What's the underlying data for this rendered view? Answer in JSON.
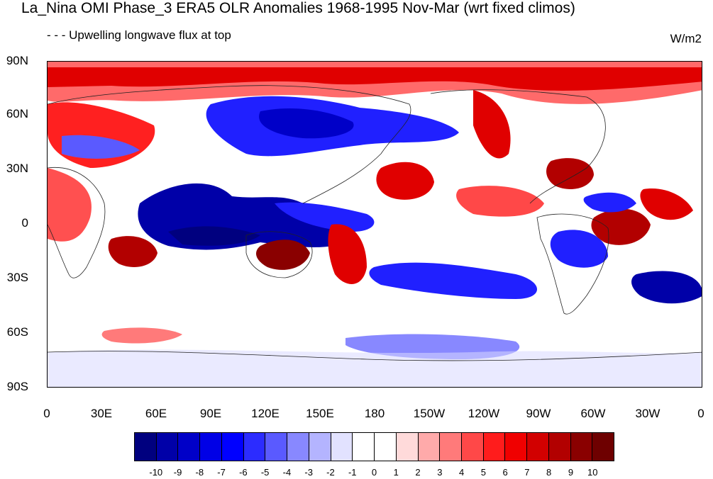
{
  "title": "La_Nina OMI Phase_3 ERA5 OLR Anomalies 1968-1995 Nov-Mar (wrt fixed climos)",
  "subtitle_left": "- - - Upwelling longwave flux at top",
  "subtitle_right": "W/m2",
  "lat_labels": [
    "90N",
    "60N",
    "30N",
    "0",
    "30S",
    "60S",
    "90S"
  ],
  "lon_labels": [
    "0",
    "30E",
    "60E",
    "90E",
    "120E",
    "150E",
    "180",
    "150W",
    "120W",
    "90W",
    "60W",
    "30W",
    "0"
  ],
  "colorbar": {
    "labels": [
      "-10",
      "-9",
      "-8",
      "-7",
      "-6",
      "-5",
      "-4",
      "-3",
      "-2",
      "-1",
      "0",
      "1",
      "2",
      "3",
      "4",
      "5",
      "6",
      "7",
      "8",
      "9",
      "10"
    ],
    "colors": [
      "#00007f",
      "#0000a8",
      "#0000c8",
      "#0000e6",
      "#0000ff",
      "#2c2cff",
      "#5a5aff",
      "#8888ff",
      "#b4b4ff",
      "#e2e2ff",
      "#ffffff",
      "#ffffff",
      "#ffdada",
      "#ffaaaa",
      "#ff7a7a",
      "#ff4848",
      "#ff1c1c",
      "#f00000",
      "#d20000",
      "#b20000",
      "#8a0000",
      "#6e0000"
    ]
  },
  "map_colors": {
    "strong_pos": "#8a0000",
    "pos": "#e00000",
    "weak_pos": "#ff8080",
    "pale_pos": "#ffd6d6",
    "neutral": "#ffffff",
    "pale_neg": "#d8d8ff",
    "weak_neg": "#8888ff",
    "neg": "#2020ff",
    "strong_neg": "#00007f",
    "coast": "#222222"
  }
}
